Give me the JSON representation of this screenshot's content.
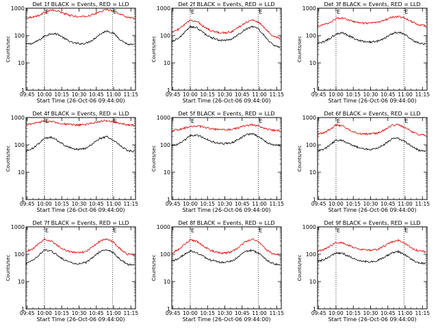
{
  "figure": {
    "ylabel": "Counts/sec",
    "xlabel": "Start Time (26-Oct-06 09:44:00)",
    "xticks": [
      "09:45",
      "10:00",
      "10:15",
      "10:30",
      "10:45",
      "11:00",
      "11:15"
    ],
    "yticks": [
      "1",
      "10",
      "100",
      "1000"
    ],
    "marker": "E",
    "colors": {
      "events": "#000000",
      "lld": "#dd0000",
      "axes": "#000000",
      "background": "#ffffff"
    }
  },
  "chart_data": [
    {
      "type": "line",
      "title": "Det 1f BLACK = Events, RED = LLD",
      "x": [
        "09:44",
        "09:50",
        "09:56",
        "10:00",
        "10:06",
        "10:12",
        "10:18",
        "10:24",
        "10:30",
        "10:36",
        "10:42",
        "10:48",
        "10:54",
        "11:00",
        "11:06",
        "11:12",
        "11:18"
      ],
      "ylim": [
        1,
        1000
      ],
      "yscale": "log",
      "xlim": [
        "09:44",
        "11:19"
      ],
      "vlines": [
        "10:00",
        "10:59"
      ],
      "series": [
        {
          "name": "Events",
          "values": [
            48,
            52,
            70,
            95,
            120,
            110,
            75,
            55,
            50,
            52,
            70,
            110,
            150,
            120,
            70,
            48,
            45
          ]
        },
        {
          "name": "LLD",
          "values": [
            450,
            480,
            560,
            700,
            850,
            780,
            620,
            520,
            480,
            500,
            580,
            740,
            900,
            800,
            600,
            470,
            440
          ]
        }
      ]
    },
    {
      "type": "line",
      "title": "Det 2f BLACK = Events, RED = LLD",
      "x": [
        "09:44",
        "09:50",
        "09:56",
        "10:00",
        "10:06",
        "10:12",
        "10:18",
        "10:24",
        "10:30",
        "10:36",
        "10:42",
        "10:48",
        "10:54",
        "11:00",
        "11:06",
        "11:12",
        "11:18"
      ],
      "ylim": [
        1,
        1000
      ],
      "yscale": "log",
      "xlim": [
        "09:44",
        "11:19"
      ],
      "vlines": [
        "10:00",
        "10:59"
      ],
      "series": [
        {
          "name": "Events",
          "values": [
            60,
            80,
            140,
            210,
            190,
            120,
            85,
            70,
            65,
            75,
            110,
            170,
            220,
            160,
            80,
            45,
            35
          ]
        },
        {
          "name": "LLD",
          "values": [
            130,
            170,
            270,
            360,
            330,
            210,
            150,
            130,
            125,
            140,
            200,
            300,
            380,
            290,
            160,
            95,
            80
          ]
        }
      ]
    },
    {
      "type": "line",
      "title": "Det 3f BLACK = Events, RED = LLD",
      "x": [
        "09:44",
        "09:50",
        "09:56",
        "10:00",
        "10:06",
        "10:12",
        "10:18",
        "10:24",
        "10:30",
        "10:36",
        "10:42",
        "10:48",
        "10:54",
        "11:00",
        "11:06",
        "11:12",
        "11:18"
      ],
      "ylim": [
        1,
        1000
      ],
      "yscale": "log",
      "xlim": [
        "09:44",
        "11:19"
      ],
      "vlines": [
        "10:00",
        "10:59"
      ],
      "series": [
        {
          "name": "Events",
          "values": [
            50,
            60,
            85,
            115,
            125,
            95,
            70,
            60,
            58,
            62,
            80,
            115,
            135,
            110,
            70,
            52,
            48
          ]
        },
        {
          "name": "LLD",
          "values": [
            220,
            250,
            320,
            420,
            430,
            360,
            300,
            280,
            280,
            300,
            360,
            460,
            500,
            430,
            320,
            240,
            230
          ]
        }
      ]
    },
    {
      "type": "line",
      "title": "Det 4f BLACK = Events, RED = LLD",
      "x": [
        "09:44",
        "09:50",
        "09:56",
        "10:00",
        "10:06",
        "10:12",
        "10:18",
        "10:24",
        "10:30",
        "10:36",
        "10:42",
        "10:48",
        "10:54",
        "11:00",
        "11:06",
        "11:12",
        "11:18"
      ],
      "ylim": [
        1,
        1000
      ],
      "yscale": "log",
      "xlim": [
        "09:44",
        "11:19"
      ],
      "vlines": [
        "10:00",
        "10:59"
      ],
      "series": [
        {
          "name": "Events",
          "values": [
            60,
            75,
            120,
            170,
            190,
            140,
            95,
            75,
            68,
            75,
            110,
            170,
            200,
            150,
            90,
            62,
            58
          ]
        },
        {
          "name": "LLD",
          "values": [
            560,
            600,
            680,
            740,
            720,
            640,
            570,
            540,
            530,
            560,
            620,
            720,
            780,
            700,
            600,
            540,
            520
          ]
        }
      ]
    },
    {
      "type": "line",
      "title": "Det 5f BLACK = Events, RED = LLD",
      "x": [
        "09:44",
        "09:50",
        "09:56",
        "10:00",
        "10:06",
        "10:12",
        "10:18",
        "10:24",
        "10:30",
        "10:36",
        "10:42",
        "10:48",
        "10:54",
        "11:00",
        "11:06",
        "11:12",
        "11:18"
      ],
      "ylim": [
        1,
        1000
      ],
      "yscale": "log",
      "xlim": [
        "09:44",
        "11:19"
      ],
      "vlines": [
        "10:00",
        "10:59"
      ],
      "series": [
        {
          "name": "Events",
          "values": [
            95,
            105,
            160,
            215,
            230,
            180,
            135,
            115,
            110,
            120,
            160,
            230,
            260,
            190,
            125,
            100,
            95
          ]
        },
        {
          "name": "LLD",
          "values": [
            340,
            360,
            420,
            480,
            500,
            440,
            380,
            360,
            355,
            370,
            420,
            500,
            550,
            470,
            380,
            340,
            330
          ]
        }
      ]
    },
    {
      "type": "line",
      "title": "Det 6f BLACK = Events, RED = LLD",
      "x": [
        "09:44",
        "09:50",
        "09:56",
        "10:00",
        "10:06",
        "10:12",
        "10:18",
        "10:24",
        "10:30",
        "10:36",
        "10:42",
        "10:48",
        "10:54",
        "11:00",
        "11:06",
        "11:12",
        "11:18"
      ],
      "ylim": [
        1,
        1000
      ],
      "yscale": "log",
      "xlim": [
        "09:44",
        "11:19"
      ],
      "vlines": [
        "10:00",
        "10:59"
      ],
      "series": [
        {
          "name": "Events",
          "values": [
            60,
            70,
            110,
            150,
            145,
            110,
            85,
            72,
            68,
            75,
            105,
            160,
            175,
            130,
            85,
            62,
            58
          ]
        },
        {
          "name": "LLD",
          "values": [
            250,
            280,
            400,
            540,
            480,
            340,
            270,
            250,
            250,
            270,
            350,
            500,
            560,
            430,
            300,
            240,
            230
          ]
        }
      ]
    },
    {
      "type": "line",
      "title": "Det 7f BLACK = Events, RED = LLD",
      "x": [
        "09:44",
        "09:50",
        "09:56",
        "10:00",
        "10:06",
        "10:12",
        "10:18",
        "10:24",
        "10:30",
        "10:36",
        "10:42",
        "10:48",
        "10:54",
        "11:00",
        "11:06",
        "11:12",
        "11:18"
      ],
      "ylim": [
        1,
        1000
      ],
      "yscale": "log",
      "xlim": [
        "09:44",
        "11:19"
      ],
      "vlines": [
        "10:00",
        "10:59"
      ],
      "series": [
        {
          "name": "Events",
          "values": [
            45,
            60,
            100,
            145,
            130,
            85,
            60,
            48,
            45,
            50,
            75,
            120,
            150,
            110,
            62,
            42,
            40
          ]
        },
        {
          "name": "LLD",
          "values": [
            120,
            160,
            260,
            350,
            300,
            200,
            140,
            118,
            112,
            125,
            190,
            300,
            370,
            270,
            150,
            100,
            95
          ]
        }
      ]
    },
    {
      "type": "line",
      "title": "Det 8f BLACK = Events, RED = LLD",
      "x": [
        "09:44",
        "09:50",
        "09:56",
        "10:00",
        "10:06",
        "10:12",
        "10:18",
        "10:24",
        "10:30",
        "10:36",
        "10:42",
        "10:48",
        "10:54",
        "11:00",
        "11:06",
        "11:12",
        "11:18"
      ],
      "ylim": [
        1,
        1000
      ],
      "yscale": "log",
      "xlim": [
        "09:44",
        "11:19"
      ],
      "vlines": [
        "10:00",
        "10:59"
      ],
      "series": [
        {
          "name": "Events",
          "values": [
            55,
            70,
            105,
            130,
            115,
            80,
            60,
            52,
            50,
            55,
            80,
            125,
            140,
            105,
            62,
            45,
            40
          ]
        },
        {
          "name": "LLD",
          "values": [
            110,
            150,
            250,
            340,
            290,
            190,
            135,
            115,
            110,
            120,
            180,
            290,
            360,
            260,
            145,
            100,
            95
          ]
        }
      ]
    },
    {
      "type": "line",
      "title": "Det 9f BLACK = Events, RED = LLD",
      "x": [
        "09:44",
        "09:50",
        "09:56",
        "10:00",
        "10:06",
        "10:12",
        "10:18",
        "10:24",
        "10:30",
        "10:36",
        "10:42",
        "10:48",
        "10:54",
        "11:00",
        "11:06",
        "11:12",
        "11:18"
      ],
      "ylim": [
        1,
        1000
      ],
      "yscale": "log",
      "xlim": [
        "09:44",
        "11:19"
      ],
      "vlines": [
        "10:00",
        "10:59"
      ],
      "series": [
        {
          "name": "Events",
          "values": [
            55,
            65,
            90,
            110,
            105,
            80,
            62,
            55,
            52,
            58,
            78,
            110,
            125,
            95,
            62,
            48,
            45
          ]
        },
        {
          "name": "LLD",
          "values": [
            130,
            150,
            210,
            270,
            260,
            200,
            160,
            145,
            140,
            150,
            200,
            280,
            320,
            250,
            165,
            130,
            125
          ]
        }
      ]
    }
  ]
}
